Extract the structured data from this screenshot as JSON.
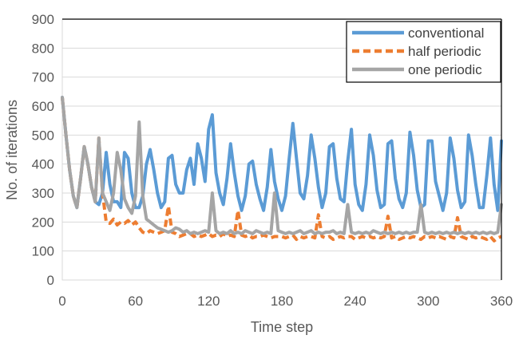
{
  "chart_data": {
    "type": "line",
    "title": "",
    "xlabel": "Time step",
    "ylabel": "No. of iterations",
    "xlim": [
      0,
      360
    ],
    "ylim": [
      0,
      900
    ],
    "xticks": [
      "0",
      "60",
      "120",
      "180",
      "240",
      "300",
      "360"
    ],
    "yticks": [
      "0",
      "100",
      "200",
      "300",
      "400",
      "500",
      "600",
      "700",
      "800",
      "900"
    ],
    "grid": true,
    "legend_position": "top-right",
    "x_step": 3,
    "series": [
      {
        "name": "conventional",
        "color": "#5b9bd5",
        "dash": "solid",
        "values": [
          630,
          500,
          380,
          290,
          250,
          350,
          460,
          400,
          320,
          270,
          260,
          300,
          440,
          330,
          270,
          270,
          250,
          440,
          420,
          300,
          250,
          250,
          290,
          400,
          450,
          380,
          300,
          250,
          270,
          420,
          430,
          330,
          300,
          300,
          380,
          420,
          330,
          470,
          420,
          340,
          520,
          570,
          370,
          300,
          260,
          350,
          470,
          370,
          290,
          240,
          290,
          400,
          410,
          330,
          280,
          240,
          320,
          450,
          340,
          280,
          240,
          290,
          420,
          540,
          420,
          300,
          280,
          360,
          500,
          420,
          320,
          250,
          300,
          460,
          470,
          350,
          280,
          270,
          410,
          520,
          330,
          260,
          240,
          330,
          500,
          430,
          310,
          250,
          260,
          470,
          480,
          350,
          280,
          250,
          300,
          510,
          430,
          310,
          250,
          260,
          480,
          480,
          340,
          290,
          240,
          300,
          490,
          420,
          310,
          250,
          270,
          500,
          430,
          330,
          250,
          250,
          360,
          490,
          330,
          240,
          480
        ]
      },
      {
        "name": "half periodic",
        "color": "#ed7d31",
        "dash": "dashed",
        "values": [
          630,
          500,
          380,
          290,
          250,
          350,
          460,
          400,
          320,
          270,
          490,
          300,
          200,
          195,
          210,
          190,
          200,
          195,
          205,
          190,
          200,
          180,
          165,
          160,
          170,
          165,
          160,
          165,
          170,
          255,
          165,
          160,
          150,
          155,
          160,
          160,
          150,
          155,
          150,
          155,
          160,
          150,
          155,
          150,
          160,
          150,
          155,
          150,
          240,
          155,
          150,
          155,
          145,
          150,
          150,
          155,
          150,
          145,
          150,
          150,
          150,
          145,
          150,
          155,
          140,
          150,
          145,
          150,
          150,
          145,
          225,
          150,
          145,
          150,
          140,
          145,
          150,
          145,
          150,
          150,
          140,
          145,
          150,
          145,
          150,
          145,
          150,
          145,
          150,
          220,
          145,
          150,
          140,
          145,
          150,
          145,
          150,
          145,
          140,
          150,
          145,
          150,
          145,
          150,
          145,
          140,
          150,
          145,
          215,
          150,
          145,
          140,
          150,
          145,
          150,
          145,
          140,
          150,
          135,
          145,
          150
        ]
      },
      {
        "name": "one periodic",
        "color": "#a5a5a5",
        "dash": "solid",
        "values": [
          630,
          500,
          380,
          290,
          250,
          350,
          460,
          400,
          320,
          270,
          490,
          300,
          270,
          240,
          300,
          440,
          380,
          280,
          250,
          230,
          290,
          545,
          290,
          210,
          200,
          190,
          180,
          175,
          170,
          165,
          170,
          180,
          175,
          165,
          170,
          160,
          165,
          160,
          165,
          170,
          165,
          300,
          170,
          160,
          165,
          160,
          170,
          160,
          165,
          160,
          170,
          165,
          160,
          170,
          165,
          160,
          165,
          160,
          300,
          170,
          165,
          160,
          165,
          160,
          165,
          170,
          160,
          165,
          170,
          160,
          165,
          160,
          165,
          165,
          170,
          160,
          165,
          160,
          260,
          165,
          160,
          165,
          160,
          165,
          160,
          170,
          165,
          160,
          165,
          160,
          165,
          160,
          165,
          160,
          165,
          160,
          165,
          165,
          260,
          165,
          160,
          165,
          160,
          165,
          160,
          165,
          160,
          165,
          160,
          165,
          160,
          165,
          160,
          165,
          160,
          165,
          160,
          165,
          160,
          165,
          260
        ]
      }
    ]
  }
}
